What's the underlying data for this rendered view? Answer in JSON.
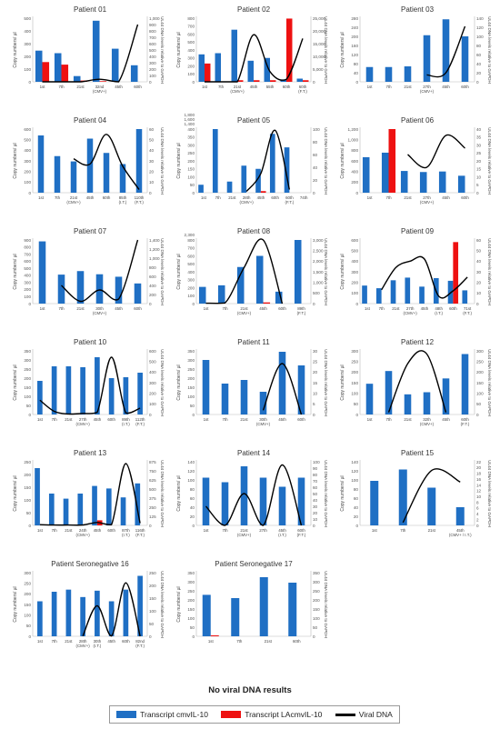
{
  "colors": {
    "transcript": "#1f6fc4",
    "la_transcript": "#ee1111",
    "viral": "#000000",
    "axis": "#bbbbbb"
  },
  "caption": "No viral DNA results",
  "legend": {
    "items": [
      {
        "label": "Transcript cmvIL-10",
        "kind": "bar",
        "color": "#1f6fc4"
      },
      {
        "label": "Transcript LAcmvIL-10",
        "kind": "bar",
        "color": "#ee1111"
      },
      {
        "label": "Viral DNA",
        "kind": "line",
        "color": "#000000"
      }
    ]
  },
  "chart_data": [
    {
      "title": "Patient 01",
      "type": "bar-line",
      "ylabel": "Copy numbers/ µl",
      "y2label": "UL44 DNA levels relative to GAPDH",
      "ylim": [
        0,
        500
      ],
      "yticks": [
        0,
        100,
        200,
        300,
        400,
        500
      ],
      "y2lim": [
        0,
        1000
      ],
      "y2ticks": [
        0,
        100,
        200,
        300,
        400,
        500,
        600,
        700,
        800,
        900,
        1000
      ],
      "categories": [
        "1st",
        "7th",
        "21st",
        "32nd\n(CMV+)",
        "45th",
        "60th"
      ],
      "series": [
        {
          "values": [
            245,
            225,
            45,
            480,
            260,
            130
          ]
        },
        {
          "values": [
            155,
            135,
            10,
            5,
            0,
            0
          ]
        }
      ],
      "line": [
        0,
        0,
        0,
        40,
        0,
        900
      ]
    },
    {
      "title": "Patient 02",
      "type": "bar-line",
      "ylabel": "Copy numbers/ µl",
      "y2label": "UL44 DNA levels relative to GAPDH",
      "ylim": [
        0,
        800
      ],
      "yticks": [
        0,
        100,
        200,
        300,
        400,
        500,
        600,
        700,
        800
      ],
      "y2lim": [
        0,
        25000
      ],
      "y2ticks": [
        0,
        5000,
        10000,
        15000,
        20000,
        25000
      ],
      "categories": [
        "1st",
        "7th",
        "21st\n(CMV+)",
        "45th",
        "55th",
        "60th",
        "60th\n(F.T.)"
      ],
      "series": [
        {
          "values": [
            345,
            360,
            655,
            265,
            300,
            30,
            40
          ]
        },
        {
          "values": [
            230,
            0,
            20,
            20,
            20,
            795,
            20
          ]
        }
      ],
      "line": [
        0,
        0,
        0,
        18500,
        4000,
        1000,
        17000
      ]
    },
    {
      "title": "Patient 03",
      "type": "bar-line",
      "ylabel": "Copy numbers/ µl",
      "y2label": "UL44 DNA levels relative to GAPDH",
      "ylim": [
        0,
        280
      ],
      "yticks": [
        0,
        40,
        80,
        120,
        160,
        200,
        240,
        280
      ],
      "y2lim": [
        0,
        140
      ],
      "y2ticks": [
        0,
        20,
        40,
        60,
        80,
        100,
        120,
        140
      ],
      "categories": [
        "1st",
        "7th",
        "21st",
        "27th\n(CMV+)",
        "45th",
        "60th"
      ],
      "series": [
        {
          "values": [
            65,
            65,
            68,
            205,
            275,
            200
          ]
        }
      ],
      "line": [
        null,
        null,
        null,
        15,
        20,
        122
      ]
    },
    {
      "title": "Patient 04",
      "type": "bar-line",
      "ylabel": "Copy numbers/ µl",
      "y2label": "UL44 DNA levels relative to GAPDH",
      "ylim": [
        0,
        600
      ],
      "yticks": [
        0,
        100,
        200,
        300,
        400,
        500,
        600
      ],
      "y2lim": [
        0,
        60
      ],
      "y2ticks": [
        0,
        10,
        20,
        30,
        40,
        50,
        60
      ],
      "categories": [
        "1st",
        "7th",
        "21st\n(CMV+)",
        "45th",
        "60th",
        "85th\n(I.T.)",
        "110th\n(F.T.)"
      ],
      "series": [
        {
          "values": [
            540,
            345,
            295,
            510,
            375,
            270,
            610
          ]
        }
      ],
      "line": [
        null,
        null,
        32,
        27,
        55,
        25,
        3
      ]
    },
    {
      "title": "Patient 05",
      "type": "bar-line",
      "ylabel": "Copy numbers/ µl",
      "y2label": "UL44 DNA levels relative to GAPDH",
      "ylim": [
        0,
        400
      ],
      "yticks": [
        0,
        50,
        100,
        150,
        200,
        250,
        300,
        350,
        400
      ],
      "y2lim": [
        0,
        100
      ],
      "y2ticks": [
        0,
        20,
        40,
        60,
        80,
        100
      ],
      "extra_ticks": [
        "1,400",
        "1,600",
        "1,800"
      ],
      "categories": [
        "1st",
        "7th",
        "21st",
        "28th\n(CMV+)",
        "45th",
        "60th",
        "60th\n(F.T.)",
        "74th"
      ],
      "series": [
        {
          "values": [
            50,
            400,
            70,
            170,
            150,
            370,
            285,
            0
          ]
        },
        {
          "values": [
            0,
            0,
            0,
            0,
            10,
            0,
            0,
            0
          ]
        }
      ],
      "line": [
        null,
        null,
        null,
        2,
        30,
        98,
        5,
        null
      ]
    },
    {
      "title": "Patient 06",
      "type": "bar-line",
      "ylabel": "Copy numbers/ µl",
      "y2label": "UL44 DNA levels relative to GAPDH",
      "ylim": [
        0,
        1200
      ],
      "yticks": [
        0,
        200,
        400,
        600,
        800,
        1000,
        1200
      ],
      "y2lim": [
        0,
        40
      ],
      "y2ticks": [
        0,
        5,
        10,
        15,
        20,
        25,
        30,
        35,
        40
      ],
      "categories": [
        "1st",
        "7th",
        "21st",
        "27th\n(CMV+)",
        "45th",
        "60th"
      ],
      "series": [
        {
          "values": [
            670,
            755,
            410,
            390,
            400,
            320
          ]
        },
        {
          "values": [
            0,
            1200,
            0,
            0,
            0,
            0
          ]
        }
      ],
      "line": [
        null,
        null,
        24,
        16,
        36,
        28
      ]
    },
    {
      "title": "Patient 07",
      "type": "bar-line",
      "ylabel": "Copy numbers/ µl",
      "y2label": "UL44 DNA levels relative to GAPDH",
      "ylim": [
        0,
        900
      ],
      "yticks": [
        0,
        100,
        200,
        300,
        400,
        500,
        600,
        700,
        800,
        900
      ],
      "y2lim": [
        0,
        1400
      ],
      "y2ticks": [
        0,
        200,
        400,
        600,
        800,
        1000,
        1200,
        1400
      ],
      "categories": [
        "1st",
        "7th",
        "21st",
        "30th\n(CMV+)",
        "45th",
        "60th"
      ],
      "series": [
        {
          "values": [
            880,
            410,
            460,
            415,
            380,
            285
          ]
        }
      ],
      "line": [
        null,
        400,
        50,
        300,
        100,
        1400
      ]
    },
    {
      "title": "Patient 08",
      "type": "bar-line",
      "ylabel": "Copy numbers/ µl",
      "y2label": "UL44 DNA levels relative to GAPDH",
      "ylim": [
        0,
        800
      ],
      "yticks": [
        0,
        100,
        200,
        300,
        400,
        500,
        600,
        700,
        800
      ],
      "y2lim": [
        0,
        3000
      ],
      "y2ticks": [
        0,
        500,
        1000,
        1500,
        2000,
        2500,
        3000
      ],
      "extra_ticks": [
        "2,300"
      ],
      "categories": [
        "1st",
        "7th",
        "21st\n(CMV+)",
        "45th",
        "60th",
        "89th\n(F.T.)"
      ],
      "series": [
        {
          "values": [
            210,
            230,
            460,
            600,
            150,
            800
          ]
        },
        {
          "values": [
            0,
            0,
            0,
            15,
            0,
            0
          ]
        }
      ],
      "line": [
        20,
        30,
        1700,
        3000,
        0,
        null
      ]
    },
    {
      "title": "Patient 09",
      "type": "bar-line",
      "ylabel": "Copy numbers/ µl",
      "y2label": "UL44 DNA levels relative to GAPDH",
      "ylim": [
        0,
        600
      ],
      "yticks": [
        0,
        100,
        200,
        300,
        400,
        500,
        600
      ],
      "y2lim": [
        0,
        60
      ],
      "y2ticks": [
        0,
        10,
        20,
        30,
        40,
        50,
        60
      ],
      "categories": [
        "1st",
        "7th",
        "21st",
        "27th\n(CMV+)",
        "45th",
        "48th\n(I.T.)",
        "60th",
        "71st\n(F.T.)"
      ],
      "series": [
        {
          "values": [
            170,
            145,
            220,
            245,
            160,
            240,
            215,
            125
          ]
        },
        {
          "values": [
            0,
            0,
            0,
            0,
            0,
            0,
            580,
            0
          ]
        }
      ],
      "line": [
        null,
        13,
        34,
        40,
        42,
        7,
        12,
        25
      ]
    },
    {
      "title": "Patient 10",
      "type": "bar-line",
      "ylabel": "Copy numbers/ µl",
      "y2label": "UL44 DNA levels relative to GAPDH",
      "ylim": [
        0,
        350
      ],
      "yticks": [
        0,
        50,
        100,
        150,
        200,
        250,
        300,
        350
      ],
      "y2lim": [
        0,
        600
      ],
      "y2ticks": [
        0,
        100,
        200,
        300,
        400,
        500,
        600
      ],
      "categories": [
        "1st",
        "7th",
        "21st",
        "27th\n(CMV+)",
        "45th",
        "60th",
        "89th\n(I.T.)",
        "112th\n(F.T.)"
      ],
      "series": [
        {
          "values": [
            185,
            265,
            265,
            260,
            315,
            200,
            205,
            230
          ]
        }
      ],
      "line": [
        135,
        30,
        5,
        10,
        20,
        540,
        15,
        60
      ]
    },
    {
      "title": "Patient 11",
      "type": "bar-line",
      "ylabel": "Copy numbers/ µl",
      "y2label": "UL44 DNA levels relative to GAPDH",
      "ylim": [
        0,
        350
      ],
      "yticks": [
        0,
        50,
        100,
        150,
        200,
        250,
        300,
        350
      ],
      "y2lim": [
        0,
        30
      ],
      "y2ticks": [
        0,
        5,
        10,
        15,
        20,
        25,
        30
      ],
      "categories": [
        "1st",
        "7th",
        "21st",
        "30th\n(CMV+)",
        "45th",
        "60th"
      ],
      "series": [
        {
          "values": [
            300,
            170,
            190,
            125,
            345,
            270
          ]
        }
      ],
      "line": [
        null,
        null,
        null,
        2,
        24,
        0
      ]
    },
    {
      "title": "Patient 12",
      "type": "bar-line",
      "ylabel": "Copy numbers/ µl",
      "y2label": "UL44 DNA levels relative to GAPDH",
      "ylim": [
        0,
        300
      ],
      "yticks": [
        0,
        50,
        100,
        150,
        200,
        250,
        300
      ],
      "y2lim": [
        0,
        300
      ],
      "y2ticks": [
        0,
        50,
        100,
        150,
        200,
        250,
        300
      ],
      "categories": [
        "1st",
        "7th",
        "21st",
        "32th\n(CMV+)",
        "45th",
        "60th\n(F.T.)"
      ],
      "series": [
        {
          "values": [
            145,
            205,
            95,
            105,
            170,
            285
          ]
        }
      ],
      "line": [
        null,
        10,
        240,
        285,
        10,
        null
      ]
    },
    {
      "title": "Patient 13",
      "type": "bar-line",
      "ylabel": "Copy numbers/ µl",
      "y2label": "UL44 DNA levels relative to GAPDH",
      "ylim": [
        0,
        250
      ],
      "yticks": [
        0,
        50,
        100,
        150,
        200,
        250
      ],
      "y2lim": [
        0,
        875
      ],
      "y2ticks": [
        0,
        125,
        250,
        375,
        500,
        625,
        750,
        875
      ],
      "categories": [
        "1st",
        "7th",
        "21st",
        "24th\n(CMV+)",
        "45th",
        "60th",
        "87th\n(I.T.)",
        "116th\n(F.T.)"
      ],
      "series": [
        {
          "values": [
            225,
            125,
            105,
            125,
            155,
            145,
            110,
            165
          ]
        },
        {
          "values": [
            0,
            0,
            0,
            0,
            20,
            0,
            0,
            0
          ]
        }
      ],
      "line": [
        10,
        5,
        5,
        5,
        40,
        10,
        850,
        30
      ]
    },
    {
      "title": "Patient 14",
      "type": "bar-line",
      "ylabel": "Copy numbers/ µl",
      "y2label": "UL44 DNA levels relative to GAPDH",
      "ylim": [
        0,
        140
      ],
      "yticks": [
        0,
        20,
        40,
        60,
        80,
        100,
        120,
        140
      ],
      "y2lim": [
        0,
        100
      ],
      "y2ticks": [
        0,
        10,
        20,
        30,
        40,
        50,
        60,
        70,
        80,
        90,
        100
      ],
      "categories": [
        "1st",
        "7th",
        "21st\n(CMV+)",
        "27th",
        "45th\n(I.T.)",
        "60th\n(F.T.)"
      ],
      "series": [
        {
          "values": [
            105,
            95,
            130,
            105,
            85,
            105
          ]
        }
      ],
      "line": [
        30,
        0,
        50,
        0,
        95,
        0
      ]
    },
    {
      "title": "Patient 15",
      "type": "bar-line",
      "ylabel": "Copy numbers/ µl",
      "y2label": "UL44 DNA levels relative to GAPDH",
      "ylim": [
        0,
        140
      ],
      "yticks": [
        0,
        20,
        40,
        60,
        80,
        100,
        120,
        140
      ],
      "y2lim": [
        0,
        22
      ],
      "y2ticks": [
        0,
        2,
        4,
        6,
        8,
        10,
        12,
        14,
        16,
        18,
        20,
        22
      ],
      "categories": [
        "1st",
        "7th",
        "21st",
        "45th\n(CMV+ / I.T.)"
      ],
      "series": [
        {
          "values": [
            98,
            123,
            83,
            40
          ]
        }
      ],
      "line": [
        null,
        1,
        19,
        15
      ]
    },
    {
      "title": "Patient Seronegative 16",
      "type": "bar-line",
      "ylabel": "Copy numbers/ µl",
      "y2label": "UL44 DNA levels relative to GAPDH",
      "ylim": [
        0,
        300
      ],
      "yticks": [
        0,
        50,
        100,
        150,
        200,
        250,
        300
      ],
      "y2lim": [
        0,
        250
      ],
      "y2ticks": [
        0,
        50,
        100,
        150,
        200,
        250
      ],
      "categories": [
        "1st",
        "7th",
        "21st",
        "28th\n(CMV+)",
        "30th\n(I.T.)",
        "45th",
        "60th",
        "82nd\n(F.T.)"
      ],
      "series": [
        {
          "values": [
            165,
            210,
            220,
            185,
            215,
            165,
            220,
            285
          ]
        }
      ],
      "line": [
        null,
        null,
        null,
        1,
        120,
        1,
        210,
        0
      ]
    },
    {
      "title": "Patient Seronegative 17",
      "type": "bar",
      "ylabel": "Copy numbers/ µl",
      "y2label": "UL44 DNA levels relative to GAPDH",
      "ylim": [
        0,
        350
      ],
      "yticks": [
        0,
        50,
        100,
        150,
        200,
        250,
        300,
        350
      ],
      "y2lim": [
        0,
        350
      ],
      "y2ticks": [
        0,
        50,
        100,
        150,
        200,
        250,
        300,
        350
      ],
      "categories": [
        "1st",
        "7th",
        "21st",
        "60th"
      ],
      "series": [
        {
          "values": [
            228,
            210,
            325,
            295
          ]
        },
        {
          "values": [
            5,
            0,
            0,
            0
          ]
        }
      ],
      "line": []
    }
  ]
}
